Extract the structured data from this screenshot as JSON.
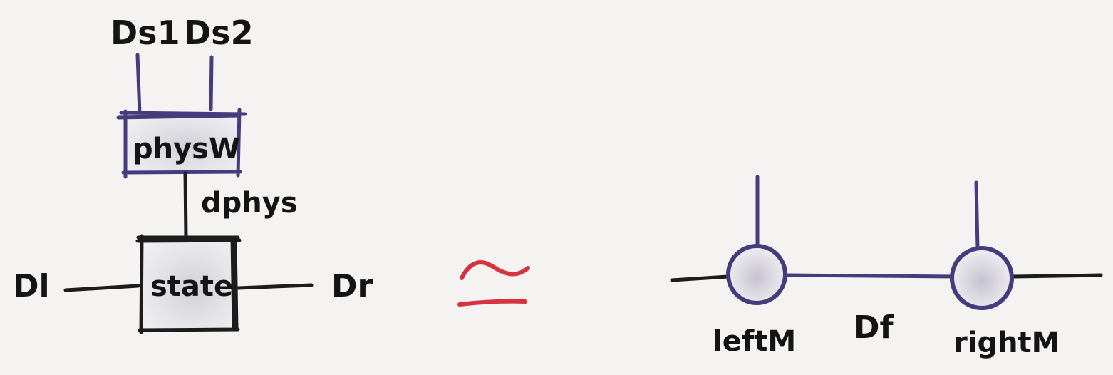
{
  "diagram": {
    "left": {
      "top_labels": [
        "Ds1",
        "Ds2"
      ],
      "upper_box": "physW",
      "connector": "dphys",
      "lower_box": "state",
      "left_label": "Dl",
      "right_label": "Dr"
    },
    "equivalence": {
      "symbol": "≃",
      "color": "#d8323f"
    },
    "right": {
      "left_node": "leftM",
      "middle_label": "Df",
      "right_node": "rightM"
    },
    "colors": {
      "outline": "#443c7c",
      "wire": "#1c1c1c",
      "fill": "#dcdae2",
      "background": "#f4f3f1"
    }
  }
}
